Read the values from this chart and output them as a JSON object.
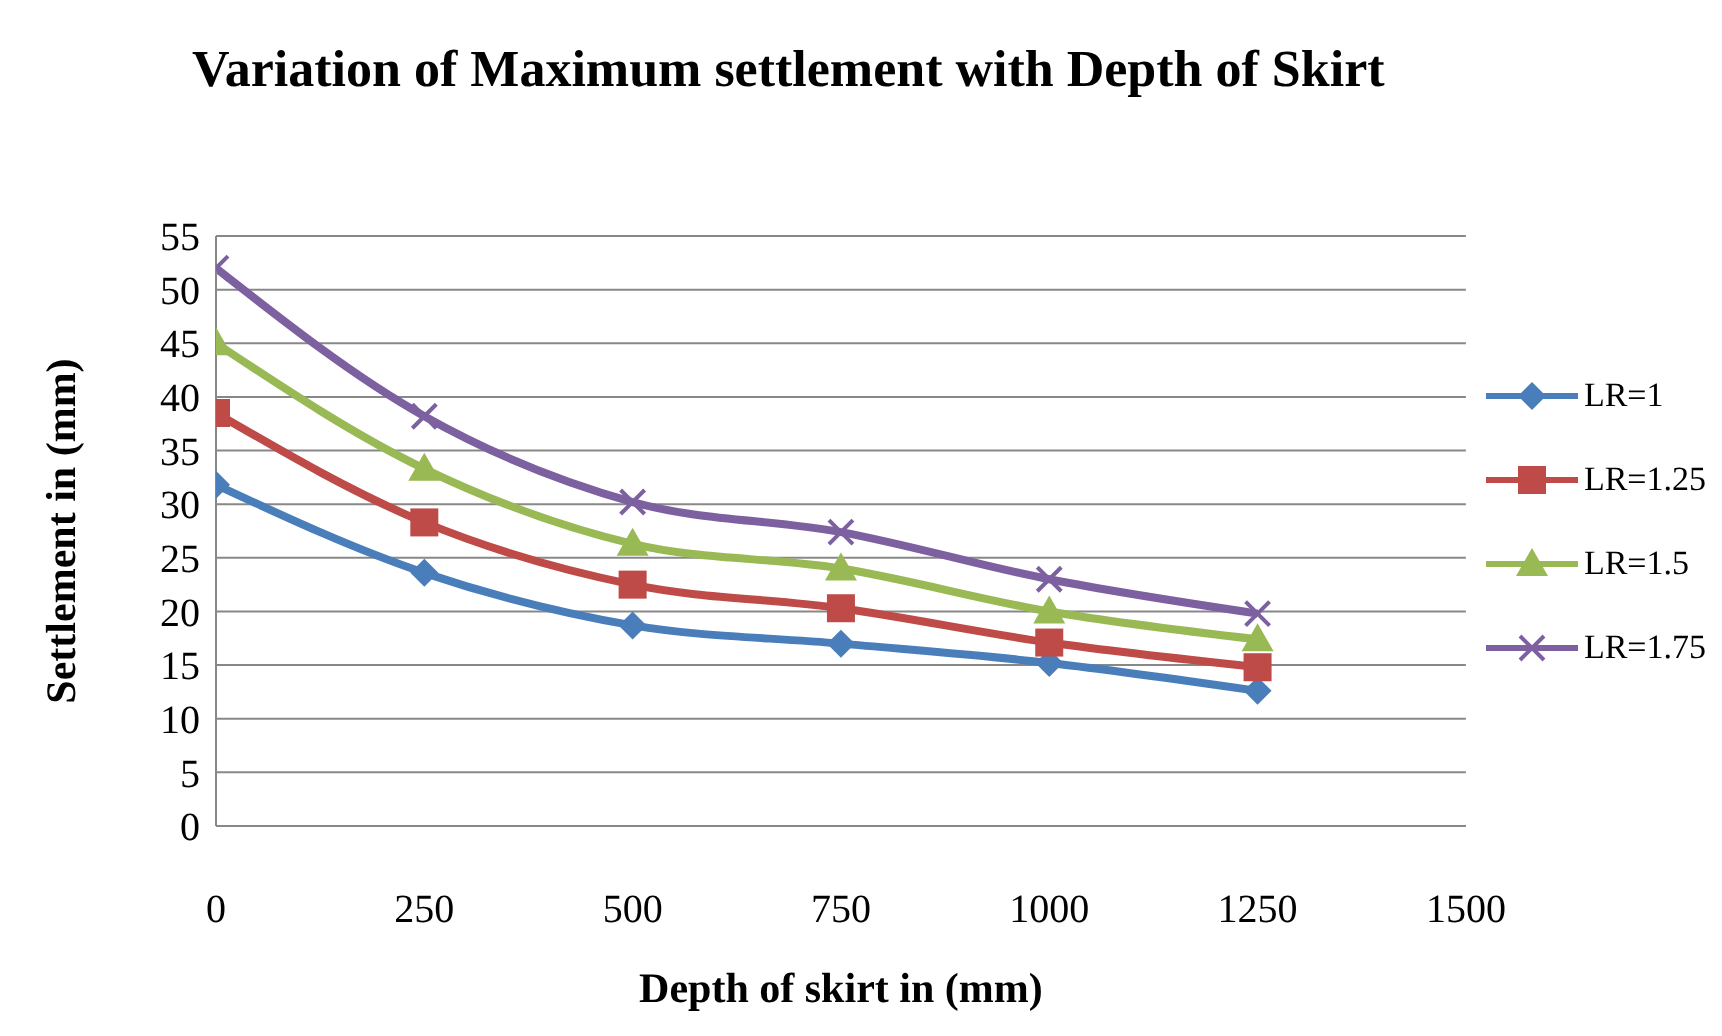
{
  "chart_data": {
    "type": "line",
    "title": "Variation of Maximum settlement with Depth of Skirt",
    "xlabel": "Depth of skirt in (mm)",
    "ylabel": "Settlement in (mm)",
    "x": [
      0,
      250,
      500,
      750,
      1000,
      1250
    ],
    "xlim": [
      0,
      1500
    ],
    "xticks": [
      0,
      250,
      500,
      750,
      1000,
      1250,
      1500
    ],
    "ylim": [
      0,
      55
    ],
    "yticks": [
      0,
      5,
      10,
      15,
      20,
      25,
      30,
      35,
      40,
      45,
      50,
      55
    ],
    "grid": "y",
    "legend": "right",
    "series": [
      {
        "name": "LR=1",
        "color": "#4a7ebb",
        "marker": "diamond",
        "values": [
          31.8,
          23.6,
          18.7,
          17,
          15.2,
          12.6
        ]
      },
      {
        "name": "LR=1.25",
        "color": "#be4b48",
        "marker": "square",
        "values": [
          38.5,
          28.3,
          22.5,
          20.3,
          17.1,
          14.8
        ]
      },
      {
        "name": "LR=1.5",
        "color": "#98b954",
        "marker": "triangle",
        "values": [
          45,
          33.3,
          26.3,
          24,
          20,
          17.4
        ]
      },
      {
        "name": "LR=1.75",
        "color": "#7d60a0",
        "marker": "cross",
        "values": [
          52,
          38.2,
          30.2,
          27.4,
          23,
          19.8
        ]
      }
    ]
  }
}
